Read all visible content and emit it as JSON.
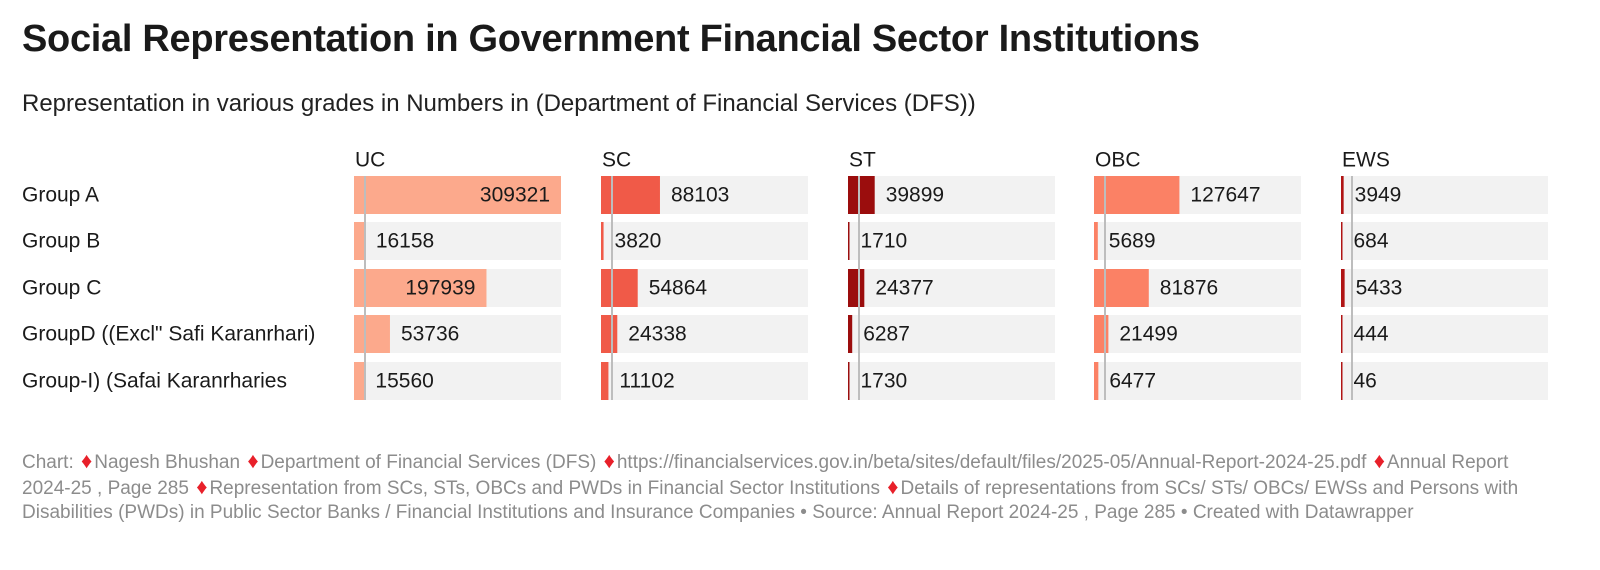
{
  "title": "Social Representation in Government Financial Sector Institutions",
  "subtitle": "Representation in various grades in Numbers in (Department of Financial Services (DFS))",
  "chart_data": {
    "type": "bar",
    "layout": "small-multiples",
    "categories": [
      "Group A",
      "Group B",
      "Group C",
      "GroupD ((Excl\" Safi Karanrhari)",
      "Group-I) (Safai Karanrharies"
    ],
    "series": [
      {
        "name": "UC",
        "values": [
          309321,
          16158,
          197939,
          53736,
          15560
        ],
        "color": "#fca98c"
      },
      {
        "name": "SC",
        "values": [
          88103,
          3820,
          54864,
          24338,
          11102
        ],
        "color": "#f05a48"
      },
      {
        "name": "ST",
        "values": [
          39899,
          1710,
          24377,
          6287,
          1730
        ],
        "color": "#9b0d0d"
      },
      {
        "name": "OBC",
        "values": [
          127647,
          5689,
          81876,
          21499,
          6477
        ],
        "color": "#fb8165"
      },
      {
        "name": "EWS",
        "values": [
          3949,
          684,
          5433,
          444,
          46
        ],
        "color": "#b01414"
      }
    ],
    "xlim": [
      0,
      309321
    ],
    "track_color": "#f2f2f2",
    "reference_line_color": "#bdbdbd"
  },
  "footer": {
    "prefix": "Chart:",
    "credits": [
      "Nagesh Bhushan",
      "Department of Financial Services (DFS)",
      "https://financialservices.gov.in/beta/sites/default/files/2025-05/Annual-Report-2024-25.pdf",
      "Annual Report 2024-25 , Page 285",
      "Representation from SCs, STs, OBCs and PWDs in Financial Sector Institutions",
      "Details of representations from SCs/ STs/ OBCs/ EWSs and Persons with Disabilities (PWDs) in Public Sector Banks / Financial Institutions and Insurance Companies"
    ],
    "source": "Source: Annual Report 2024-25 , Page 285",
    "created_with": "Created with Datawrapper"
  }
}
